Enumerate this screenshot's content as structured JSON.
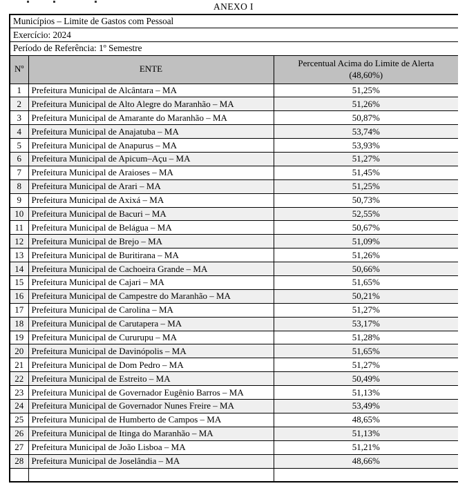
{
  "document": {
    "title": "ANEXO I",
    "info_rows": [
      "Municípios – Limite de Gastos com Pessoal",
      "Exercício: 2024",
      "Período de Referência: 1º Semestre"
    ]
  },
  "table": {
    "headers": {
      "num": "Nº",
      "ente": "ENTE",
      "percent_line1": "Percentual Acima do Limite de Alerta",
      "percent_line2": "(48,60%)"
    },
    "rows": [
      {
        "num": "1",
        "ente": "Prefeitura Municipal de Alcântara – MA",
        "percent": "51,25%"
      },
      {
        "num": "2",
        "ente": "Prefeitura Municipal de Alto Alegre do Maranhão – MA",
        "percent": "51,26%"
      },
      {
        "num": "3",
        "ente": "Prefeitura Municipal de Amarante do Maranhão – MA",
        "percent": "50,87%"
      },
      {
        "num": "4",
        "ente": "Prefeitura Municipal de Anajatuba – MA",
        "percent": "53,74%"
      },
      {
        "num": "5",
        "ente": "Prefeitura Municipal de Anapurus – MA",
        "percent": "53,93%"
      },
      {
        "num": "6",
        "ente": "Prefeitura Municipal de Apicum–Açu – MA",
        "percent": "51,27%"
      },
      {
        "num": "7",
        "ente": "Prefeitura Municipal de Araioses – MA",
        "percent": "51,45%"
      },
      {
        "num": "8",
        "ente": "Prefeitura Municipal de Arari – MA",
        "percent": "51,25%"
      },
      {
        "num": "9",
        "ente": "Prefeitura Municipal de Axixá – MA",
        "percent": "50,73%"
      },
      {
        "num": "10",
        "ente": "Prefeitura Municipal de Bacuri – MA",
        "percent": "52,55%"
      },
      {
        "num": "11",
        "ente": "Prefeitura Municipal de Belágua – MA",
        "percent": "50,67%"
      },
      {
        "num": "12",
        "ente": "Prefeitura Municipal de Brejo – MA",
        "percent": "51,09%"
      },
      {
        "num": "13",
        "ente": "Prefeitura Municipal de Buritirana – MA",
        "percent": "51,26%"
      },
      {
        "num": "14",
        "ente": "Prefeitura Municipal de Cachoeira Grande – MA",
        "percent": "50,66%"
      },
      {
        "num": "15",
        "ente": "Prefeitura Municipal de Cajari – MA",
        "percent": "51,65%"
      },
      {
        "num": "16",
        "ente": "Prefeitura Municipal de Campestre do Maranhão – MA",
        "percent": "50,21%"
      },
      {
        "num": "17",
        "ente": "Prefeitura Municipal de Carolina – MA",
        "percent": "51,27%"
      },
      {
        "num": "18",
        "ente": "Prefeitura Municipal de Carutapera – MA",
        "percent": "53,17%"
      },
      {
        "num": "19",
        "ente": "Prefeitura Municipal de Cururupu – MA",
        "percent": "51,28%"
      },
      {
        "num": "20",
        "ente": "Prefeitura Municipal de Davinópolis – MA",
        "percent": "51,65%"
      },
      {
        "num": "21",
        "ente": "Prefeitura Municipal de Dom Pedro – MA",
        "percent": "51,27%"
      },
      {
        "num": "22",
        "ente": "Prefeitura Municipal de Estreito – MA",
        "percent": "50,49%"
      },
      {
        "num": "23",
        "ente": "Prefeitura Municipal de Governador Eugênio Barros – MA",
        "percent": "51,13%"
      },
      {
        "num": "24",
        "ente": "Prefeitura Municipal de Governador Nunes Freire – MA",
        "percent": "53,49%"
      },
      {
        "num": "25",
        "ente": "Prefeitura Municipal de Humberto de Campos – MA",
        "percent": "48,65%"
      },
      {
        "num": "26",
        "ente": "Prefeitura Municipal de Itinga do Maranhão – MA",
        "percent": "51,13%"
      },
      {
        "num": "27",
        "ente": "Prefeitura Municipal de João Lisboa – MA",
        "percent": "51,21%"
      },
      {
        "num": "28",
        "ente": "Prefeitura Municipal de Joselândia – MA",
        "percent": "48,66%"
      }
    ]
  },
  "colors": {
    "header_bg": "#C0C0C0",
    "alt_row_bg": "#EFEFEF",
    "border": "#000000"
  }
}
